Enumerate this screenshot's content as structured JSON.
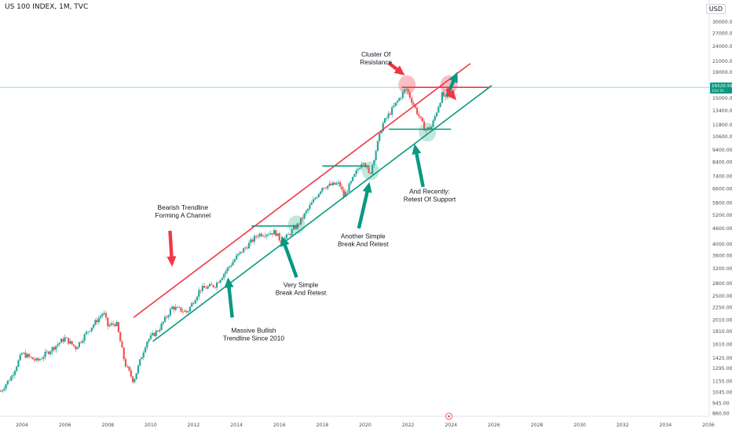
{
  "header": {
    "title": "US 100 INDEX, 1M, TVC",
    "currency": "USD"
  },
  "price_tag": {
    "value": "16520.59",
    "sub": "16d 2h"
  },
  "colors": {
    "up": "#26a69a",
    "down": "#ef5350",
    "green_line": "#089981",
    "red_line": "#f23645",
    "hline": "#7fd3d0"
  },
  "chart_data": {
    "type": "candlestick",
    "y_scale": "log",
    "ylim": [
      880,
      33000
    ],
    "xlim": [
      2003.0,
      2036.0
    ],
    "y_ticks": [
      "30000.00",
      "27000.00",
      "24000.00",
      "21000.00",
      "19000.00",
      "17000.00",
      "15000.00",
      "13400.00",
      "11800.00",
      "10600.00",
      "9400.00",
      "8400.00",
      "7400.00",
      "6600.00",
      "5800.00",
      "5200.00",
      "4600.00",
      "4000.00",
      "3600.00",
      "3200.00",
      "2800.00",
      "2500.00",
      "2250.00",
      "2010.00",
      "1810.00",
      "1610.00",
      "1425.00",
      "1295.00",
      "1155.00",
      "1045.00",
      "945.00",
      "860.00"
    ],
    "x_ticks": [
      "2004",
      "2006",
      "2008",
      "2010",
      "2012",
      "2014",
      "2016",
      "2018",
      "2020",
      "2022",
      "2024",
      "2026",
      "2028",
      "2030",
      "2032",
      "2034",
      "2036"
    ],
    "price_series": [
      {
        "t": 2003.0,
        "v": 1050
      },
      {
        "t": 2003.5,
        "v": 1200
      },
      {
        "t": 2004.0,
        "v": 1480
      },
      {
        "t": 2004.7,
        "v": 1380
      },
      {
        "t": 2005.3,
        "v": 1520
      },
      {
        "t": 2006.0,
        "v": 1700
      },
      {
        "t": 2006.5,
        "v": 1560
      },
      {
        "t": 2007.0,
        "v": 1780
      },
      {
        "t": 2007.8,
        "v": 2150
      },
      {
        "t": 2008.0,
        "v": 1900
      },
      {
        "t": 2008.4,
        "v": 1950
      },
      {
        "t": 2008.8,
        "v": 1350
      },
      {
        "t": 2009.2,
        "v": 1150
      },
      {
        "t": 2009.8,
        "v": 1650
      },
      {
        "t": 2010.4,
        "v": 1850
      },
      {
        "t": 2011.0,
        "v": 2250
      },
      {
        "t": 2011.7,
        "v": 2150
      },
      {
        "t": 2012.3,
        "v": 2650
      },
      {
        "t": 2013.0,
        "v": 2750
      },
      {
        "t": 2014.0,
        "v": 3550
      },
      {
        "t": 2015.0,
        "v": 4350
      },
      {
        "t": 2015.8,
        "v": 4450
      },
      {
        "t": 2016.1,
        "v": 4050
      },
      {
        "t": 2016.9,
        "v": 4800
      },
      {
        "t": 2018.0,
        "v": 6700
      },
      {
        "t": 2018.8,
        "v": 6900
      },
      {
        "t": 2019.0,
        "v": 6150
      },
      {
        "t": 2019.9,
        "v": 8600
      },
      {
        "t": 2020.2,
        "v": 7400
      },
      {
        "t": 2020.8,
        "v": 11800
      },
      {
        "t": 2021.9,
        "v": 16400
      },
      {
        "t": 2022.8,
        "v": 11200
      },
      {
        "t": 2023.1,
        "v": 11600
      },
      {
        "t": 2023.6,
        "v": 15600
      },
      {
        "t": 2023.8,
        "v": 14500
      },
      {
        "t": 2023.95,
        "v": 16520
      }
    ],
    "horizontal_line": {
      "y": 16520.59
    },
    "lines": [
      {
        "name": "red-trendline",
        "t1": 2009.2,
        "v1": 2050,
        "t2": 2024.9,
        "v2": 20500
      },
      {
        "name": "green-trendline",
        "t1": 2010.1,
        "v1": 1650,
        "t2": 2025.9,
        "v2": 16800
      },
      {
        "name": "red-resistance",
        "t1": 2021.7,
        "v1": 16520,
        "t2": 2025.8,
        "v2": 16520
      },
      {
        "name": "green-support-2016",
        "t1": 2014.7,
        "v1": 4700,
        "t2": 2016.9,
        "v2": 4700
      },
      {
        "name": "green-support-2019",
        "t1": 2018.0,
        "v1": 8100,
        "t2": 2020.2,
        "v2": 8100
      },
      {
        "name": "green-support-2022",
        "t1": 2021.1,
        "v1": 11300,
        "t2": 2024.0,
        "v2": 11300
      }
    ],
    "circles": [
      {
        "name": "circle-resistance-2021",
        "t": 2021.95,
        "v": 16900,
        "color": "#f48a94"
      },
      {
        "name": "circle-resistance-2023",
        "t": 2023.9,
        "v": 16900,
        "color": "#f48a94"
      },
      {
        "name": "circle-retest-2016",
        "t": 2016.8,
        "v": 4750,
        "color": "#8fd4bf"
      },
      {
        "name": "circle-retest-2020",
        "t": 2020.25,
        "v": 7750,
        "color": "#8fd4bf"
      },
      {
        "name": "circle-retest-2022",
        "t": 2022.9,
        "v": 11000,
        "color": "#8fd4bf"
      }
    ],
    "annotations": [
      {
        "name": "annotation-cluster-resistance",
        "lines": [
          "Cluster Of",
          "Resistance"
        ],
        "t": 2020.5,
        "v": 21800
      },
      {
        "name": "annotation-bearish-trendline",
        "lines": [
          "Bearish Trendline",
          "Forming A Channel"
        ],
        "t": 2011.5,
        "v": 5450
      },
      {
        "name": "annotation-very-simple",
        "lines": [
          "Very Simple",
          "Break And Retest"
        ],
        "t": 2017.0,
        "v": 2700
      },
      {
        "name": "annotation-massive-bullish",
        "lines": [
          "Massive Bullish",
          "Trendline Since 2010"
        ],
        "t": 2014.8,
        "v": 1790
      },
      {
        "name": "annotation-another-simple",
        "lines": [
          "Another Simple",
          "Break And Retest"
        ],
        "t": 2019.9,
        "v": 4200
      },
      {
        "name": "annotation-recently",
        "lines": [
          "And Recently:",
          "Retest Of Support"
        ],
        "t": 2023.0,
        "v": 6300
      }
    ],
    "arrows": [
      {
        "name": "arrow-cluster",
        "from_t": 2021.1,
        "from_v": 20600,
        "to_t": 2021.85,
        "to_v": 18400,
        "color": "#f23645"
      },
      {
        "name": "arrow-bearish",
        "from_t": 2010.9,
        "from_v": 4500,
        "to_t": 2011.0,
        "to_v": 3250,
        "color": "#f23645"
      },
      {
        "name": "arrow-very-simple",
        "from_t": 2016.8,
        "from_v": 2950,
        "to_t": 2016.1,
        "to_v": 4300,
        "color": "#089981"
      },
      {
        "name": "arrow-massive",
        "from_t": 2013.8,
        "from_v": 2050,
        "to_t": 2013.6,
        "to_v": 2950,
        "color": "#089981"
      },
      {
        "name": "arrow-another",
        "from_t": 2019.7,
        "from_v": 4600,
        "to_t": 2020.2,
        "to_v": 7000,
        "color": "#089981"
      },
      {
        "name": "arrow-recently",
        "from_t": 2022.7,
        "from_v": 6700,
        "to_t": 2022.3,
        "to_v": 9900,
        "color": "#089981"
      },
      {
        "name": "arrow-up-continuation",
        "from_t": 2023.8,
        "from_v": 15200,
        "to_t": 2024.3,
        "to_v": 19000,
        "color": "#089981"
      },
      {
        "name": "arrow-down-rejection",
        "from_t": 2023.8,
        "from_v": 16300,
        "to_t": 2024.25,
        "to_v": 14700,
        "color": "#f23645"
      }
    ]
  }
}
